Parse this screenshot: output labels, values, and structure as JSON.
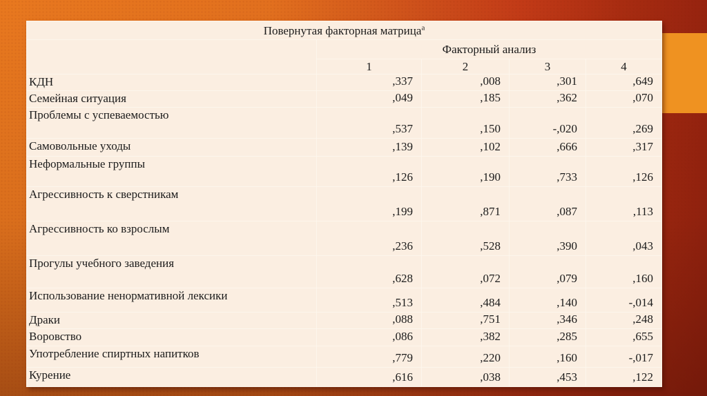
{
  "slide": {
    "colors": {
      "accent_rect": "#ef9221",
      "table_bg": "#fbeee1",
      "grid_line": "#fdf6ec",
      "text": "#1b1b1b"
    }
  },
  "table": {
    "title": "Повернутая факторная матрица",
    "title_superscript": "a",
    "group_header": "Факторный анализ",
    "column_headers": [
      "1",
      "2",
      "3",
      "4"
    ],
    "rows": [
      {
        "label": "КДН",
        "values": [
          ",337",
          ",008",
          ",301",
          ",649"
        ]
      },
      {
        "label": "Семейная ситуация",
        "values": [
          ",049",
          ",185",
          ",362",
          ",070"
        ]
      },
      {
        "label": "Проблемы с успеваемостью",
        "values": [
          ",537",
          ",150",
          "-,020",
          ",269"
        ]
      },
      {
        "label": "Самовольные уходы",
        "values": [
          ",139",
          ",102",
          ",666",
          ",317"
        ]
      },
      {
        "label": "Неформальные группы",
        "values": [
          ",126",
          ",190",
          ",733",
          ",126"
        ]
      },
      {
        "label": "Агрессивность к сверстникам",
        "values": [
          ",199",
          ",871",
          ",087",
          ",113"
        ]
      },
      {
        "label": "Агрессивность ко взрослым",
        "values": [
          ",236",
          ",528",
          ",390",
          ",043"
        ]
      },
      {
        "label": "Прогулы учебного заведения",
        "values": [
          ",628",
          ",072",
          ",079",
          ",160"
        ]
      },
      {
        "label": "Использование ненормативной лексики",
        "values": [
          ",513",
          ",484",
          ",140",
          "-,014"
        ]
      },
      {
        "label": "Драки",
        "values": [
          ",088",
          ",751",
          ",346",
          ",248"
        ]
      },
      {
        "label": "Воровство",
        "values": [
          ",086",
          ",382",
          ",285",
          ",655"
        ]
      },
      {
        "label": "Употребление спиртных напитков",
        "values": [
          ",779",
          ",220",
          ",160",
          "-,017"
        ]
      },
      {
        "label": "Курение",
        "values": [
          ",616",
          ",038",
          ",453",
          ",122"
        ]
      }
    ]
  }
}
